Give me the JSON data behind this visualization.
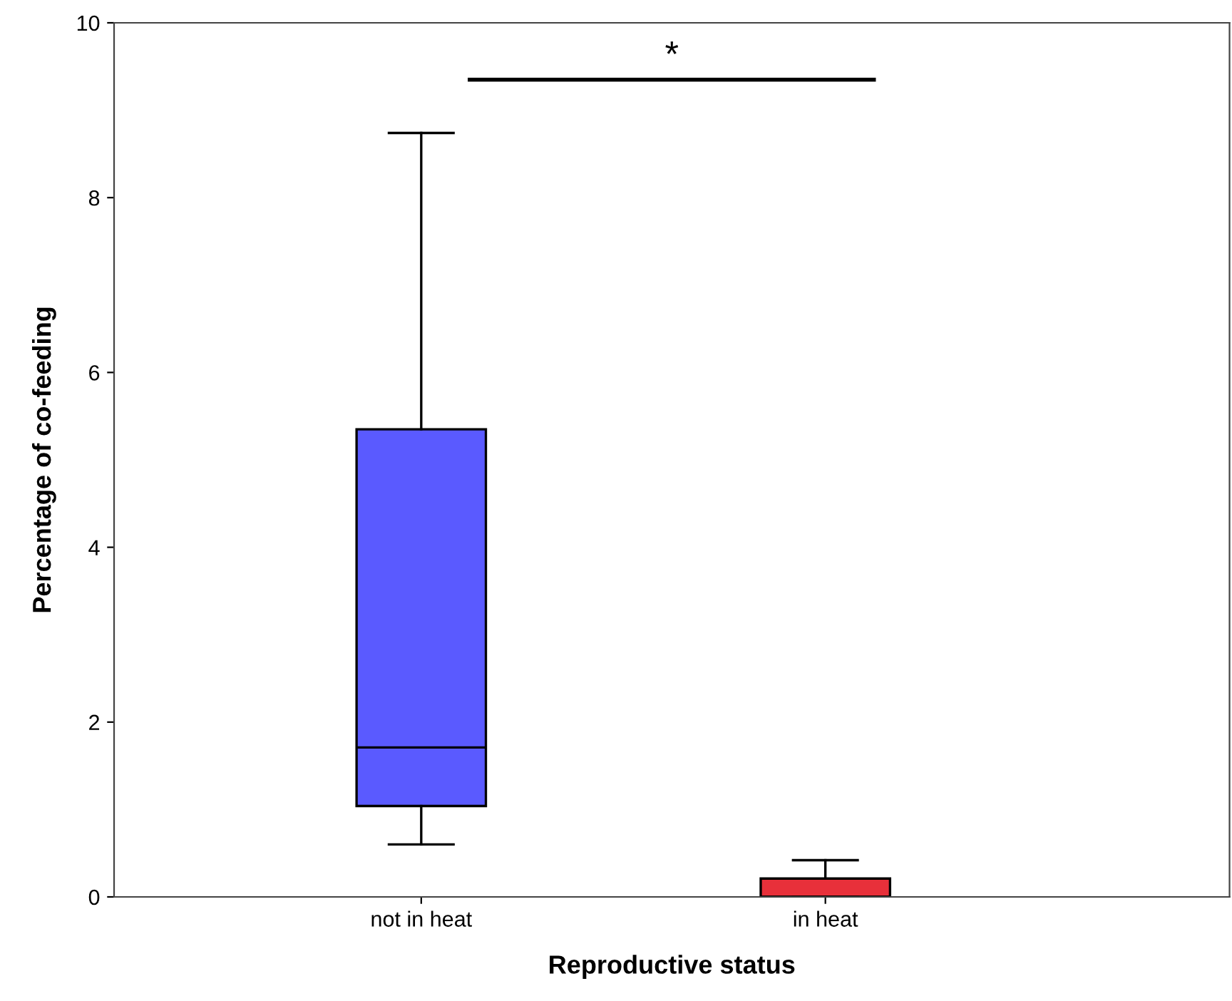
{
  "chart_data": {
    "type": "box",
    "xlabel": "Reproductive status",
    "ylabel": "Percentage of co-feeding",
    "categories": [
      "not in heat",
      "in heat"
    ],
    "colors": [
      "#5a5aff",
      "#e8303a"
    ],
    "boxes": [
      {
        "low": 0.6,
        "q1": 1.04,
        "median": 1.71,
        "q3": 5.35,
        "high": 8.74
      },
      {
        "low": 0,
        "q1": 0,
        "median": 0,
        "q3": 0.21,
        "high": 0.42
      }
    ],
    "ylim": [
      0,
      10
    ],
    "yticks": [
      0,
      2,
      4,
      6,
      8,
      10
    ],
    "grid": false,
    "annotations": [
      "*"
    ]
  }
}
